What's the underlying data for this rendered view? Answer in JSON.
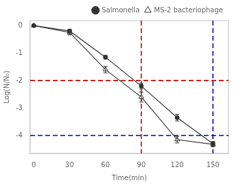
{
  "chart_data": {
    "type": "line",
    "xlabel": "Time(min)",
    "ylabel": "Log(N/N₀)",
    "xlim": [
      -3,
      163
    ],
    "ylim": [
      -4.65,
      0.18
    ],
    "xticks": [
      0,
      30,
      60,
      90,
      120,
      150
    ],
    "yticks": [
      0,
      -1,
      -2,
      -3,
      -4
    ],
    "grid": false,
    "legend": "upper right",
    "series": [
      {
        "name": "Salmonella",
        "color": "#333333",
        "marker": "circle",
        "line_style": "solid",
        "x": [
          0,
          30,
          60,
          90,
          120,
          150
        ],
        "values": [
          0,
          -0.2,
          -1.15,
          -2.2,
          -3.35,
          -4.3
        ],
        "errors": [
          0.02,
          0.07,
          0.07,
          0.1,
          0.12,
          0.08
        ]
      },
      {
        "name": "MS-2 bacteriophage",
        "color": "#333333",
        "marker": "open-triangle",
        "line_style": "solid",
        "x": [
          0,
          30,
          60,
          90,
          120,
          150
        ],
        "values": [
          0,
          -0.25,
          -1.6,
          -2.6,
          -4.15,
          -4.32
        ],
        "errors": [
          0.02,
          0.09,
          0.12,
          0.18,
          0.12,
          0.09
        ]
      }
    ],
    "reference_lines": [
      {
        "axis": "y",
        "value": -2,
        "color": "#cc0000",
        "line_style": "dashed"
      },
      {
        "axis": "x",
        "value": 90,
        "color": "#cc0000",
        "line_style": "dashed"
      },
      {
        "axis": "y",
        "value": -4,
        "color": "#0000bb",
        "line_style": "dashed"
      },
      {
        "axis": "x",
        "value": 150,
        "color": "#0000bb",
        "line_style": "dashed"
      }
    ]
  }
}
